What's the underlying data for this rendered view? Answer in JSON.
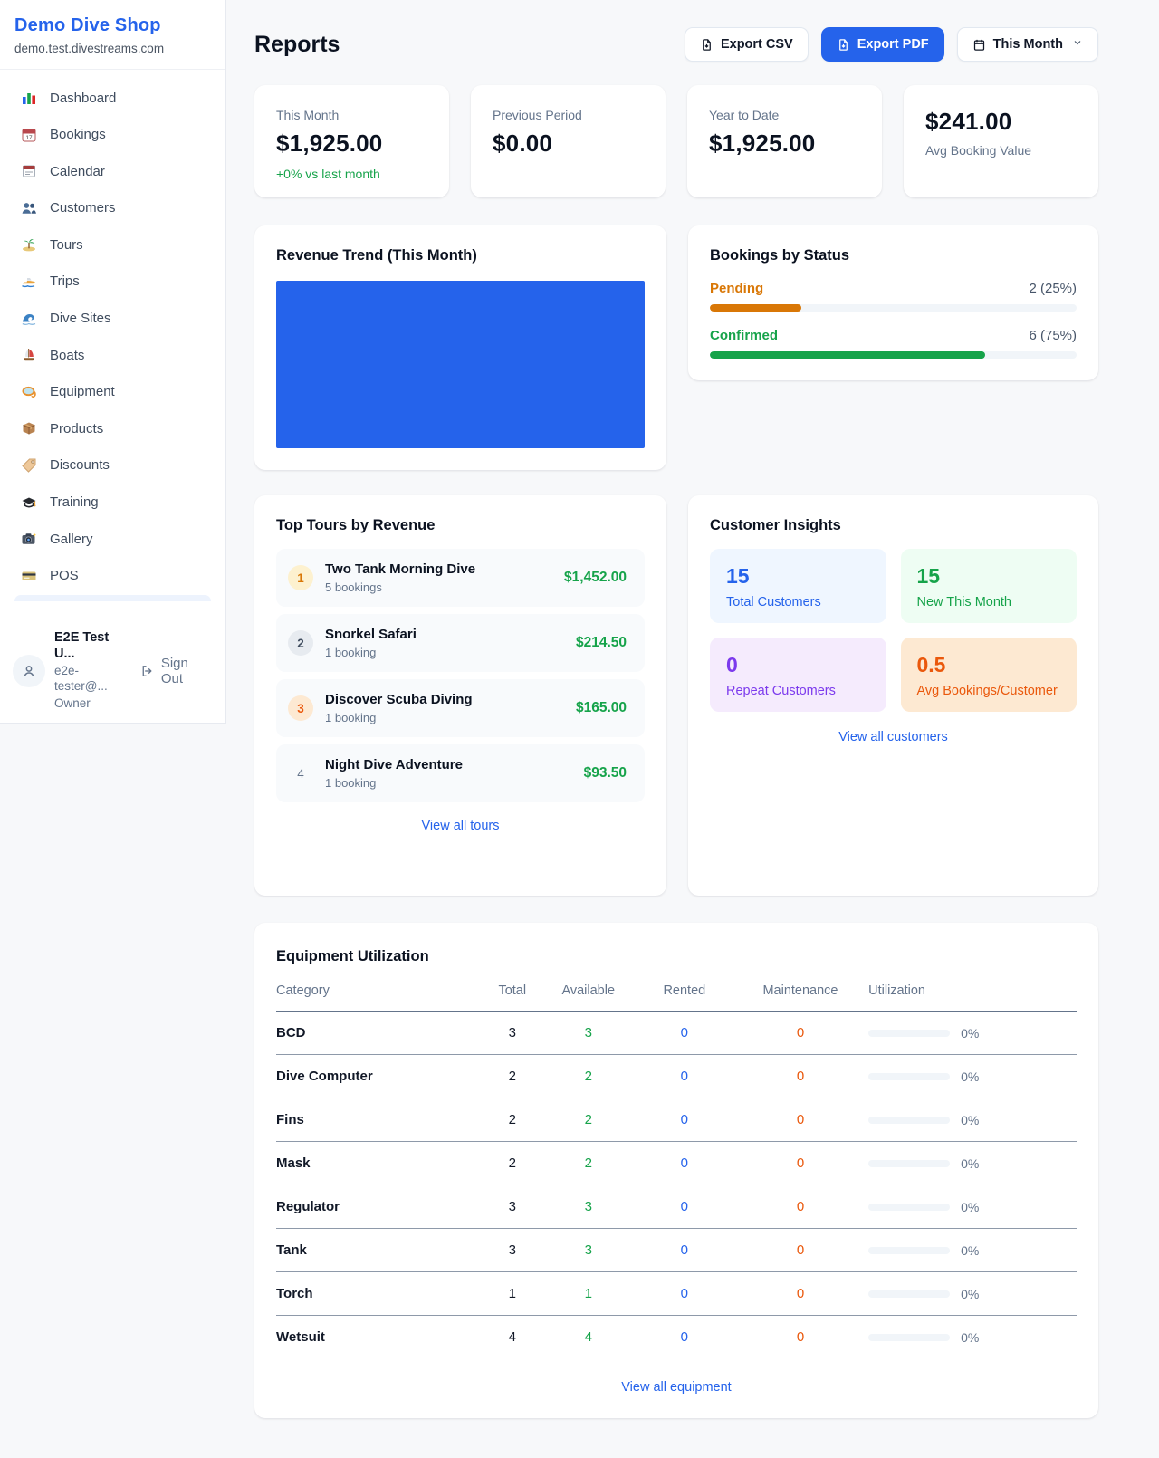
{
  "colors": {
    "accent_blue": "#2563eb",
    "green": "#16a34a",
    "pending_amber": "#d97706",
    "orange": "#ea580c",
    "purple": "#7c3aed"
  },
  "sidebar": {
    "brand": "Demo Dive Shop",
    "domain": "demo.test.divestreams.com",
    "items": [
      {
        "icon": "bar-chart",
        "label": "Dashboard"
      },
      {
        "icon": "calendar-date",
        "label": "Bookings"
      },
      {
        "icon": "tear-off-calendar",
        "label": "Calendar"
      },
      {
        "icon": "people",
        "label": "Customers"
      },
      {
        "icon": "island",
        "label": "Tours"
      },
      {
        "icon": "speedboat",
        "label": "Trips"
      },
      {
        "icon": "wave",
        "label": "Dive Sites"
      },
      {
        "icon": "sailboat",
        "label": "Boats"
      },
      {
        "icon": "dive-mask",
        "label": "Equipment"
      },
      {
        "icon": "package",
        "label": "Products"
      },
      {
        "icon": "tag",
        "label": "Discounts"
      },
      {
        "icon": "graduation-cap",
        "label": "Training"
      },
      {
        "icon": "camera",
        "label": "Gallery"
      },
      {
        "icon": "credit-card",
        "label": "POS"
      }
    ],
    "user": {
      "name": "E2E Test U...",
      "email": "e2e-tester@...",
      "role": "Owner",
      "sign_out": "Sign Out"
    }
  },
  "header": {
    "title": "Reports",
    "export_csv": "Export CSV",
    "export_pdf": "Export PDF",
    "period": "This Month"
  },
  "stats": [
    {
      "label": "This Month",
      "value": "$1,925.00",
      "note": "+0% vs last month"
    },
    {
      "label": "Previous Period",
      "value": "$0.00"
    },
    {
      "label": "Year to Date",
      "value": "$1,925.00"
    },
    {
      "label": "Avg Booking Value",
      "value": "$241.00"
    }
  ],
  "revenue_trend": {
    "title": "Revenue Trend (This Month)"
  },
  "bookings_by_status": {
    "title": "Bookings by Status",
    "items": [
      {
        "label": "Pending",
        "value": "2 (25%)",
        "pct": 25
      },
      {
        "label": "Confirmed",
        "value": "6 (75%)",
        "pct": 75
      }
    ]
  },
  "top_tours": {
    "title": "Top Tours by Revenue",
    "items": [
      {
        "rank": "1",
        "name": "Two Tank Morning Dive",
        "bookings": "5 bookings",
        "revenue": "$1,452.00"
      },
      {
        "rank": "2",
        "name": "Snorkel Safari",
        "bookings": "1 booking",
        "revenue": "$214.50"
      },
      {
        "rank": "3",
        "name": "Discover Scuba Diving",
        "bookings": "1 booking",
        "revenue": "$165.00"
      },
      {
        "rank": "4",
        "name": "Night Dive Adventure",
        "bookings": "1 booking",
        "revenue": "$93.50"
      }
    ],
    "view_all": "View all tours"
  },
  "customer_insights": {
    "title": "Customer Insights",
    "tiles": [
      {
        "value": "15",
        "label": "Total Customers"
      },
      {
        "value": "15",
        "label": "New This Month"
      },
      {
        "value": "0",
        "label": "Repeat Customers"
      },
      {
        "value": "0.5",
        "label": "Avg Bookings/Customer"
      }
    ],
    "view_all": "View all customers"
  },
  "equipment": {
    "title": "Equipment Utilization",
    "columns": [
      "Category",
      "Total",
      "Available",
      "Rented",
      "Maintenance",
      "Utilization"
    ],
    "rows": [
      {
        "category": "BCD",
        "total": "3",
        "available": "3",
        "rented": "0",
        "maintenance": "0",
        "utilization_label": "0%",
        "utilization_pct": 0
      },
      {
        "category": "Dive Computer",
        "total": "2",
        "available": "2",
        "rented": "0",
        "maintenance": "0",
        "utilization_label": "0%",
        "utilization_pct": 0
      },
      {
        "category": "Fins",
        "total": "2",
        "available": "2",
        "rented": "0",
        "maintenance": "0",
        "utilization_label": "0%",
        "utilization_pct": 0
      },
      {
        "category": "Mask",
        "total": "2",
        "available": "2",
        "rented": "0",
        "maintenance": "0",
        "utilization_label": "0%",
        "utilization_pct": 0
      },
      {
        "category": "Regulator",
        "total": "3",
        "available": "3",
        "rented": "0",
        "maintenance": "0",
        "utilization_label": "0%",
        "utilization_pct": 0
      },
      {
        "category": "Tank",
        "total": "3",
        "available": "3",
        "rented": "0",
        "maintenance": "0",
        "utilization_label": "0%",
        "utilization_pct": 0
      },
      {
        "category": "Torch",
        "total": "1",
        "available": "1",
        "rented": "0",
        "maintenance": "0",
        "utilization_label": "0%",
        "utilization_pct": 0
      },
      {
        "category": "Wetsuit",
        "total": "4",
        "available": "4",
        "rented": "0",
        "maintenance": "0",
        "utilization_label": "0%",
        "utilization_pct": 0
      }
    ],
    "view_all": "View all equipment"
  }
}
